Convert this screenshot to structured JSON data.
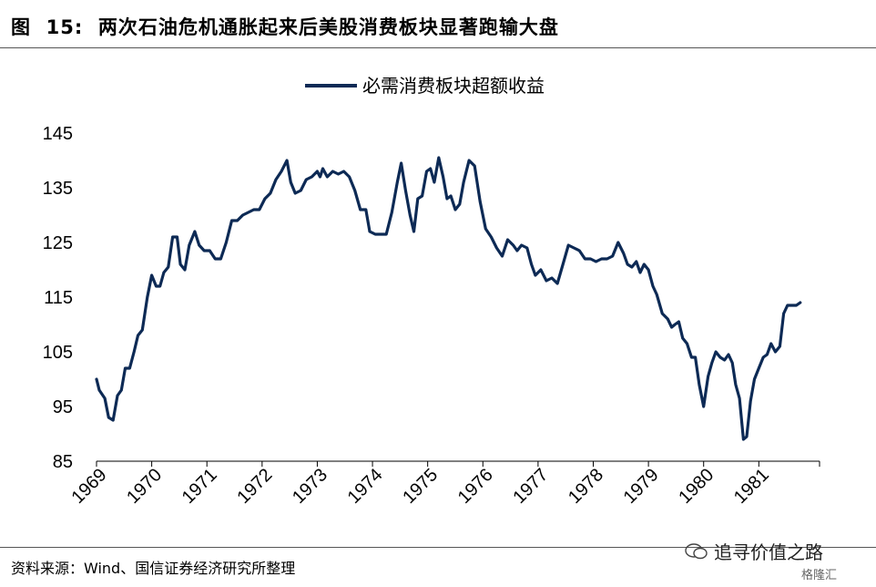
{
  "figure": {
    "label": "图",
    "number": "15:",
    "title": "两次石油危机通胀起来后美股消费板块显著跑输大盘"
  },
  "source_note": "资料来源：Wind、国信证券经济研究所整理",
  "watermark": {
    "text": "追寻价值之路",
    "logo_text": "格隆汇",
    "icon": "wechat-icon"
  },
  "colors": {
    "series": "#0d2a55",
    "axis": "#000000"
  },
  "chart_data": {
    "type": "line",
    "title": "",
    "xlabel": "",
    "ylabel": "",
    "legend_position": "top-center",
    "grid": false,
    "ylim": [
      85,
      145
    ],
    "yticks": [
      "145",
      "135",
      "125",
      "115",
      "105",
      "95",
      "85"
    ],
    "xticks": [
      "1969",
      "1970",
      "1971",
      "1972",
      "1973",
      "1974",
      "1975",
      "1976",
      "1977",
      "1978",
      "1979",
      "1980",
      "1981"
    ],
    "xlim": [
      1969,
      1982.1
    ],
    "series": [
      {
        "name": "必需消费板块超额收益",
        "points": [
          [
            1969.0,
            100.0
          ],
          [
            1969.05,
            98.0
          ],
          [
            1969.15,
            96.5
          ],
          [
            1969.22,
            93.0
          ],
          [
            1969.3,
            92.5
          ],
          [
            1969.38,
            97.0
          ],
          [
            1969.45,
            98.0
          ],
          [
            1969.52,
            102.0
          ],
          [
            1969.6,
            102.0
          ],
          [
            1969.68,
            105.0
          ],
          [
            1969.75,
            108.0
          ],
          [
            1969.83,
            109.0
          ],
          [
            1969.92,
            115.0
          ],
          [
            1970.0,
            119.0
          ],
          [
            1970.08,
            117.0
          ],
          [
            1970.15,
            117.0
          ],
          [
            1970.22,
            119.5
          ],
          [
            1970.3,
            120.5
          ],
          [
            1970.38,
            126.0
          ],
          [
            1970.46,
            126.0
          ],
          [
            1970.52,
            121.0
          ],
          [
            1970.6,
            120.0
          ],
          [
            1970.68,
            124.5
          ],
          [
            1970.78,
            127.0
          ],
          [
            1970.86,
            124.5
          ],
          [
            1970.95,
            123.5
          ],
          [
            1971.05,
            123.5
          ],
          [
            1971.15,
            122.0
          ],
          [
            1971.25,
            122.0
          ],
          [
            1971.35,
            125.0
          ],
          [
            1971.45,
            129.0
          ],
          [
            1971.55,
            129.0
          ],
          [
            1971.65,
            130.0
          ],
          [
            1971.75,
            130.5
          ],
          [
            1971.85,
            131.0
          ],
          [
            1971.95,
            131.0
          ],
          [
            1972.05,
            133.0
          ],
          [
            1972.15,
            134.0
          ],
          [
            1972.25,
            136.5
          ],
          [
            1972.35,
            138.0
          ],
          [
            1972.45,
            140.0
          ],
          [
            1972.52,
            136.0
          ],
          [
            1972.6,
            134.0
          ],
          [
            1972.7,
            134.5
          ],
          [
            1972.8,
            136.5
          ],
          [
            1972.9,
            137.0
          ],
          [
            1973.0,
            138.0
          ],
          [
            1973.05,
            137.0
          ],
          [
            1973.1,
            138.5
          ],
          [
            1973.18,
            137.0
          ],
          [
            1973.28,
            138.0
          ],
          [
            1973.38,
            137.5
          ],
          [
            1973.48,
            138.0
          ],
          [
            1973.58,
            137.0
          ],
          [
            1973.68,
            134.5
          ],
          [
            1973.78,
            131.0
          ],
          [
            1973.88,
            131.0
          ],
          [
            1973.95,
            127.0
          ],
          [
            1974.05,
            126.5
          ],
          [
            1974.15,
            126.5
          ],
          [
            1974.25,
            126.5
          ],
          [
            1974.35,
            130.5
          ],
          [
            1974.45,
            136.0
          ],
          [
            1974.52,
            139.5
          ],
          [
            1974.6,
            134.5
          ],
          [
            1974.68,
            130.0
          ],
          [
            1974.75,
            127.0
          ],
          [
            1974.82,
            133.0
          ],
          [
            1974.9,
            133.5
          ],
          [
            1974.98,
            138.0
          ],
          [
            1975.05,
            138.5
          ],
          [
            1975.12,
            136.0
          ],
          [
            1975.2,
            140.5
          ],
          [
            1975.28,
            137.0
          ],
          [
            1975.35,
            133.0
          ],
          [
            1975.42,
            133.5
          ],
          [
            1975.5,
            131.0
          ],
          [
            1975.58,
            132.0
          ],
          [
            1975.65,
            136.0
          ],
          [
            1975.75,
            140.0
          ],
          [
            1975.85,
            139.0
          ],
          [
            1975.95,
            132.5
          ],
          [
            1976.05,
            127.5
          ],
          [
            1976.15,
            126.0
          ],
          [
            1976.25,
            124.0
          ],
          [
            1976.35,
            122.5
          ],
          [
            1976.45,
            125.5
          ],
          [
            1976.55,
            124.5
          ],
          [
            1976.62,
            123.5
          ],
          [
            1976.7,
            124.5
          ],
          [
            1976.8,
            124.0
          ],
          [
            1976.88,
            121.0
          ],
          [
            1976.95,
            119.0
          ],
          [
            1977.05,
            120.0
          ],
          [
            1977.15,
            118.0
          ],
          [
            1977.25,
            118.5
          ],
          [
            1977.35,
            117.5
          ],
          [
            1977.45,
            121.0
          ],
          [
            1977.55,
            124.5
          ],
          [
            1977.65,
            124.0
          ],
          [
            1977.75,
            123.5
          ],
          [
            1977.85,
            122.0
          ],
          [
            1977.95,
            122.0
          ],
          [
            1978.05,
            121.5
          ],
          [
            1978.15,
            122.0
          ],
          [
            1978.25,
            122.0
          ],
          [
            1978.35,
            122.5
          ],
          [
            1978.45,
            125.0
          ],
          [
            1978.55,
            123.0
          ],
          [
            1978.62,
            121.0
          ],
          [
            1978.7,
            120.5
          ],
          [
            1978.78,
            121.5
          ],
          [
            1978.85,
            119.5
          ],
          [
            1978.92,
            121.0
          ],
          [
            1979.0,
            120.0
          ],
          [
            1979.08,
            117.0
          ],
          [
            1979.15,
            115.5
          ],
          [
            1979.25,
            112.0
          ],
          [
            1979.35,
            111.0
          ],
          [
            1979.42,
            109.5
          ],
          [
            1979.48,
            110.0
          ],
          [
            1979.55,
            110.5
          ],
          [
            1979.62,
            107.5
          ],
          [
            1979.7,
            106.5
          ],
          [
            1979.78,
            104.0
          ],
          [
            1979.85,
            104.0
          ],
          [
            1979.92,
            99.0
          ],
          [
            1980.0,
            95.0
          ],
          [
            1980.08,
            100.5
          ],
          [
            1980.15,
            103.0
          ],
          [
            1980.22,
            105.0
          ],
          [
            1980.3,
            104.0
          ],
          [
            1980.38,
            103.5
          ],
          [
            1980.45,
            104.5
          ],
          [
            1980.52,
            103.0
          ],
          [
            1980.58,
            99.0
          ],
          [
            1980.65,
            96.5
          ],
          [
            1980.72,
            89.0
          ],
          [
            1980.78,
            89.5
          ],
          [
            1980.85,
            96.0
          ],
          [
            1980.92,
            100.0
          ],
          [
            1981.0,
            102.0
          ],
          [
            1981.08,
            104.0
          ],
          [
            1981.15,
            104.5
          ],
          [
            1981.22,
            106.5
          ],
          [
            1981.3,
            105.0
          ],
          [
            1981.38,
            106.0
          ],
          [
            1981.45,
            112.0
          ],
          [
            1981.52,
            113.5
          ],
          [
            1981.6,
            113.5
          ],
          [
            1981.68,
            113.5
          ],
          [
            1981.75,
            114.0
          ]
        ]
      }
    ]
  }
}
